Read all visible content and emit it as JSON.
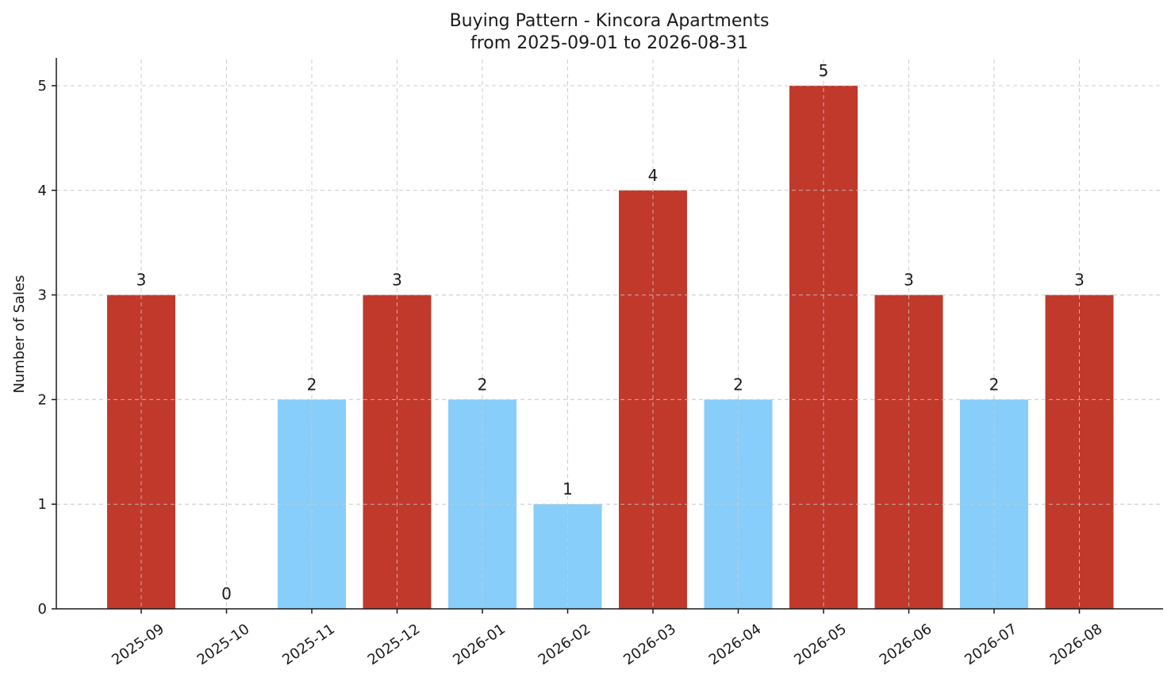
{
  "chart_data": {
    "type": "bar",
    "title": "Buying Pattern - Kincora Apartments",
    "subtitle": "from 2025-09-01 to 2026-08-31",
    "xlabel": "",
    "ylabel": "Number of Sales",
    "categories": [
      "2025-09",
      "2025-10",
      "2025-11",
      "2025-12",
      "2026-01",
      "2026-02",
      "2026-03",
      "2026-04",
      "2026-05",
      "2026-06",
      "2026-07",
      "2026-08"
    ],
    "values": [
      3,
      0,
      2,
      3,
      2,
      1,
      4,
      2,
      5,
      3,
      2,
      3
    ],
    "bar_colors": [
      "#c0392b",
      "#c0392b",
      "#87cefa",
      "#c0392b",
      "#87cefa",
      "#87cefa",
      "#c0392b",
      "#87cefa",
      "#c0392b",
      "#c0392b",
      "#87cefa",
      "#c0392b"
    ],
    "ylim": [
      0,
      5.25
    ],
    "yticks": [
      0,
      1,
      2,
      3,
      4,
      5
    ],
    "grid": true,
    "data_labels": true
  }
}
